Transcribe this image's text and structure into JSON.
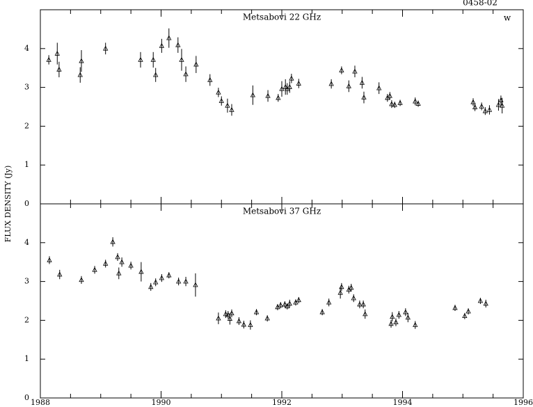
{
  "chart_data": [
    {
      "type": "scatter",
      "title": "Metsabovi 22 GHz",
      "ylabel": "FLUX DENSITY (Jy)",
      "annotations": [
        "0458-02",
        "w"
      ],
      "xlim": [
        1988,
        1996
      ],
      "ylim": [
        0,
        5
      ],
      "yticks": [
        0,
        1,
        2,
        3,
        4
      ],
      "x": [
        1988.14,
        1988.28,
        1988.31,
        1988.66,
        1988.68,
        1989.08,
        1989.66,
        1989.87,
        1989.91,
        1990.01,
        1990.13,
        1990.28,
        1990.34,
        1990.41,
        1990.58,
        1990.81,
        1990.95,
        1991.0,
        1991.1,
        1991.17,
        1991.52,
        1991.77,
        1991.94,
        1992.0,
        1992.06,
        1992.09,
        1992.13,
        1992.16,
        1992.28,
        1992.82,
        1992.99,
        1993.11,
        1993.21,
        1993.33,
        1993.36,
        1993.61,
        1993.75,
        1993.79,
        1993.82,
        1993.87,
        1993.96,
        1994.21,
        1994.26,
        1995.17,
        1995.2,
        1995.31,
        1995.37,
        1995.44,
        1995.59,
        1995.63,
        1995.65
      ],
      "values": [
        3.71,
        3.87,
        3.46,
        3.32,
        3.68,
        4.0,
        3.71,
        3.71,
        3.32,
        4.07,
        4.27,
        4.09,
        3.71,
        3.34,
        3.59,
        3.19,
        2.87,
        2.65,
        2.53,
        2.42,
        2.8,
        2.78,
        2.73,
        2.96,
        3.01,
        2.96,
        3.01,
        3.23,
        3.1,
        3.09,
        3.44,
        3.03,
        3.41,
        3.12,
        2.74,
        2.98,
        2.73,
        2.78,
        2.57,
        2.55,
        2.6,
        2.64,
        2.58,
        2.62,
        2.49,
        2.51,
        2.39,
        2.42,
        2.55,
        2.67,
        2.53
      ],
      "errors": [
        0.12,
        0.28,
        0.2,
        0.2,
        0.28,
        0.15,
        0.2,
        0.2,
        0.18,
        0.18,
        0.25,
        0.2,
        0.28,
        0.2,
        0.22,
        0.15,
        0.12,
        0.12,
        0.18,
        0.15,
        0.25,
        0.15,
        0.1,
        0.2,
        0.2,
        0.15,
        0.15,
        0.12,
        0.12,
        0.12,
        0.1,
        0.15,
        0.15,
        0.15,
        0.15,
        0.15,
        0.1,
        0.1,
        0.1,
        0.08,
        0.08,
        0.1,
        0.08,
        0.1,
        0.1,
        0.1,
        0.1,
        0.12,
        0.15,
        0.12,
        0.2
      ]
    },
    {
      "type": "scatter",
      "title": "Metsabovi 37 GHz",
      "xlim": [
        1988,
        1996
      ],
      "ylim": [
        0,
        5
      ],
      "yticks": [
        0,
        1,
        2,
        3,
        4
      ],
      "xticks": [
        1988,
        1990,
        1992,
        1994,
        1996
      ],
      "xminorticks": [
        1988.5,
        1989,
        1989.5,
        1990.5,
        1991,
        1991.5,
        1992.5,
        1993,
        1993.5,
        1994.5,
        1995,
        1995.5
      ],
      "x": [
        1988.15,
        1988.32,
        1988.68,
        1988.9,
        1989.08,
        1989.2,
        1989.28,
        1989.3,
        1989.35,
        1989.5,
        1989.67,
        1989.83,
        1989.91,
        1990.01,
        1990.13,
        1990.29,
        1990.41,
        1990.57,
        1990.95,
        1991.07,
        1991.11,
        1991.14,
        1991.17,
        1991.29,
        1991.37,
        1991.48,
        1991.58,
        1991.76,
        1991.93,
        1991.98,
        1992.05,
        1992.09,
        1992.13,
        1992.23,
        1992.28,
        1992.67,
        1992.78,
        1992.97,
        1992.99,
        1993.11,
        1993.15,
        1993.19,
        1993.29,
        1993.35,
        1993.38,
        1993.81,
        1993.83,
        1993.89,
        1993.94,
        1994.05,
        1994.09,
        1994.21,
        1994.87,
        1995.03,
        1995.09,
        1995.29,
        1995.38
      ],
      "values": [
        3.55,
        3.18,
        3.04,
        3.3,
        3.46,
        4.02,
        3.63,
        3.21,
        3.5,
        3.41,
        3.25,
        2.86,
        2.98,
        3.09,
        3.16,
        3.0,
        3.0,
        2.91,
        2.05,
        2.16,
        2.14,
        2.04,
        2.18,
        1.98,
        1.89,
        1.88,
        2.21,
        2.05,
        2.34,
        2.39,
        2.41,
        2.36,
        2.43,
        2.46,
        2.52,
        2.21,
        2.46,
        2.71,
        2.86,
        2.79,
        2.84,
        2.57,
        2.41,
        2.41,
        2.16,
        1.91,
        2.09,
        1.95,
        2.14,
        2.21,
        2.07,
        1.88,
        2.32,
        2.11,
        2.23,
        2.5,
        2.43
      ],
      "errors": [
        0.1,
        0.12,
        0.1,
        0.1,
        0.1,
        0.12,
        0.1,
        0.15,
        0.12,
        0.1,
        0.25,
        0.1,
        0.1,
        0.1,
        0.08,
        0.1,
        0.12,
        0.3,
        0.15,
        0.1,
        0.1,
        0.15,
        0.1,
        0.1,
        0.1,
        0.12,
        0.08,
        0.08,
        0.08,
        0.08,
        0.08,
        0.08,
        0.1,
        0.08,
        0.08,
        0.08,
        0.1,
        0.15,
        0.1,
        0.1,
        0.1,
        0.1,
        0.1,
        0.1,
        0.12,
        0.1,
        0.12,
        0.1,
        0.1,
        0.1,
        0.12,
        0.1,
        0.08,
        0.08,
        0.08,
        0.08,
        0.1
      ]
    }
  ]
}
